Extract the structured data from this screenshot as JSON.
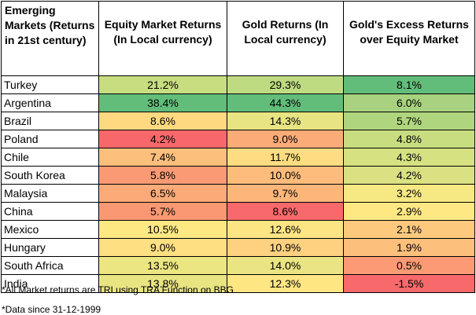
{
  "table": {
    "headers": [
      "Emerging Markets (Returns in 21st century)",
      "Equity Market Returns (In Local currency)",
      "Gold Returns (In Local currency)",
      "Gold's Excess Returns over Equity Market"
    ],
    "rows": [
      {
        "country": "Turkey",
        "equity": "21.2%",
        "gold": "29.3%",
        "excess": "8.1%",
        "equity_color": "#c7dd80",
        "gold_color": "#bfdb81",
        "excess_color": "#62bd7a"
      },
      {
        "country": "Argentina",
        "equity": "38.4%",
        "gold": "44.3%",
        "excess": "6.0%",
        "equity_color": "#62bd7a",
        "gold_color": "#62bd7a",
        "excess_color": "#a8d27f"
      },
      {
        "country": "Brazil",
        "equity": "8.6%",
        "gold": "14.3%",
        "excess": "5.7%",
        "equity_color": "#fed980",
        "gold_color": "#e8e482",
        "excess_color": "#b0d57f"
      },
      {
        "country": "Poland",
        "equity": "4.2%",
        "gold": "9.0%",
        "excess": "4.8%",
        "equity_color": "#f8686b",
        "gold_color": "#fbab78",
        "excess_color": "#c8dd80"
      },
      {
        "country": "Chile",
        "equity": "7.4%",
        "gold": "11.7%",
        "excess": "4.3%",
        "equity_color": "#fdbf7c",
        "gold_color": "#fedc81",
        "excess_color": "#d6e182"
      },
      {
        "country": "South Korea",
        "equity": "5.8%",
        "gold": "10.0%",
        "excess": "4.2%",
        "equity_color": "#fa9a74",
        "gold_color": "#fdbc7b",
        "excess_color": "#d9e182"
      },
      {
        "country": "Malaysia",
        "equity": "6.5%",
        "gold": "9.7%",
        "excess": "3.2%",
        "equity_color": "#fcab78",
        "gold_color": "#fcb67a",
        "excess_color": "#f6e883"
      },
      {
        "country": "China",
        "equity": "5.7%",
        "gold": "8.6%",
        "excess": "2.9%",
        "equity_color": "#fa9873",
        "gold_color": "#f8696b",
        "excess_color": "#fee883"
      },
      {
        "country": "Mexico",
        "equity": "10.5%",
        "gold": "12.6%",
        "excess": "2.1%",
        "equity_color": "#fee882",
        "gold_color": "#fee583",
        "excess_color": "#fdc97d"
      },
      {
        "country": "Hungary",
        "equity": "9.0%",
        "gold": "10.9%",
        "excess": "1.9%",
        "equity_color": "#fedf81",
        "gold_color": "#fdd17f",
        "excess_color": "#fdc07c"
      },
      {
        "country": "South Africa",
        "equity": "13.5%",
        "gold": "14.0%",
        "excess": "0.5%",
        "equity_color": "#ebe582",
        "gold_color": "#eae582",
        "excess_color": "#fb9a74"
      },
      {
        "country": "India",
        "equity": "13.8%",
        "gold": "12.3%",
        "excess": "-1.5%",
        "equity_color": "#e8e482",
        "gold_color": "#fee683",
        "excess_color": "#f8696b"
      }
    ]
  },
  "notes": [
    "*All Market returns are TRI using TRA Function on BBG",
    "*Data since 31-12-1999"
  ]
}
